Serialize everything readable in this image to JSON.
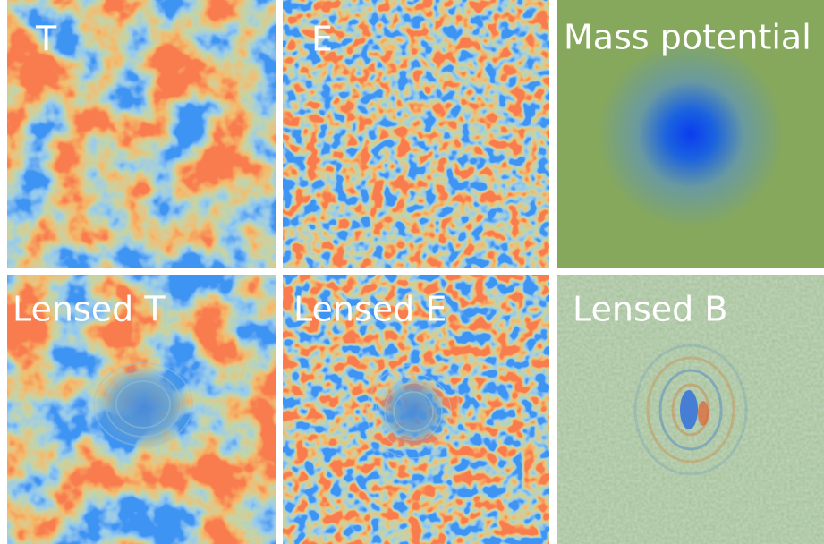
{
  "panels": [
    {
      "label": "T"
    },
    {
      "label": "E"
    },
    {
      "label": "Mass potential"
    },
    {
      "label": "Lensed T"
    },
    {
      "label": "Lensed E"
    },
    {
      "label": "Lensed B"
    }
  ]
}
